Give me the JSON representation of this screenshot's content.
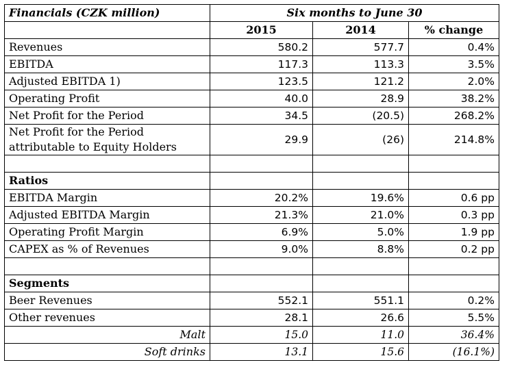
{
  "header": {
    "title": "Financials (CZK million)",
    "period": "Six months to June 30"
  },
  "columns": [
    "2015",
    "2014",
    "% change"
  ],
  "financials": [
    {
      "label": "Revenues",
      "y2015": "580.2",
      "y2014": "577.7",
      "change": "0.4%"
    },
    {
      "label": "EBITDA",
      "y2015": "117.3",
      "y2014": "113.3",
      "change": "3.5%"
    },
    {
      "label": "Adjusted EBITDA 1)",
      "y2015": "123.5",
      "y2014": "121.2",
      "change": "2.0%"
    },
    {
      "label": "Operating Profit",
      "y2015": "40.0",
      "y2014": "28.9",
      "change": "38.2%"
    },
    {
      "label": "Net Profit for the Period",
      "y2015": "34.5",
      "y2014": "(20.5)",
      "change": "268.2%"
    },
    {
      "label": "Net Profit for the Period attributable to Equity Holders",
      "y2015": "29.9",
      "y2014": "(26)",
      "change": "214.8%"
    }
  ],
  "ratios_title": "Ratios",
  "ratios": [
    {
      "label": "EBITDA Margin",
      "y2015": "20.2%",
      "y2014": "19.6%",
      "change": "0.6 pp"
    },
    {
      "label": "Adjusted EBITDA Margin",
      "y2015": "21.3%",
      "y2014": "21.0%",
      "change": "0.3 pp"
    },
    {
      "label": "Operating Profit Margin",
      "y2015": "6.9%",
      "y2014": "5.0%",
      "change": "1.9 pp"
    },
    {
      "label": "CAPEX as % of Revenues",
      "y2015": "9.0%",
      "y2014": "8.8%",
      "change": "0.2 pp"
    }
  ],
  "segments_title": "Segments",
  "segments": [
    {
      "label": "Beer Revenues",
      "y2015": "552.1",
      "y2014": "551.1",
      "change": "0.2%"
    },
    {
      "label": "Other revenues",
      "y2015": "28.1",
      "y2014": "26.6",
      "change": "5.5%"
    },
    {
      "label": "Malt",
      "y2015": "15.0",
      "y2014": "11.0",
      "change": "36.4%"
    },
    {
      "label": "Soft drinks",
      "y2015": "13.1",
      "y2014": "15.6",
      "change": "(16.1%)"
    }
  ]
}
